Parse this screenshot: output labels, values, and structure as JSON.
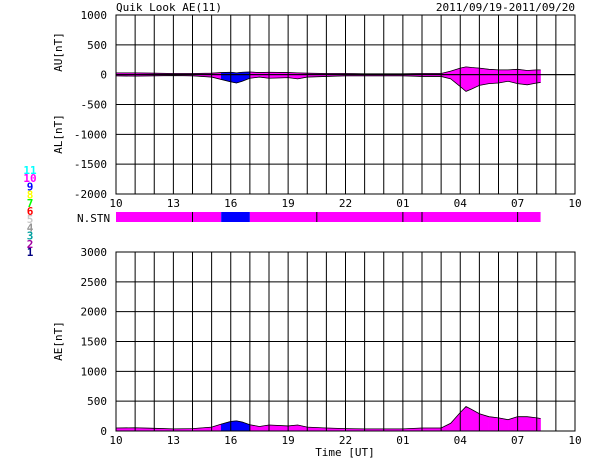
{
  "header": {
    "title": "Quik Look AE(11)",
    "date_range": "2011/09/19-2011/09/20"
  },
  "station_legend": {
    "items": [
      {
        "label": "11",
        "color": "#00ffff"
      },
      {
        "label": "10",
        "color": "#ff00ff"
      },
      {
        "label": "9",
        "color": "#0000ff"
      },
      {
        "label": "8",
        "color": "#ffff00"
      },
      {
        "label": "7",
        "color": "#00ff00"
      },
      {
        "label": "6",
        "color": "#ff0000"
      },
      {
        "label": "5",
        "color": "#c8c8c8"
      },
      {
        "label": "4",
        "color": "#969696"
      },
      {
        "label": "3",
        "color": "#00a0a0"
      },
      {
        "label": "2",
        "color": "#a000a0"
      },
      {
        "label": "1",
        "color": "#000080"
      }
    ]
  },
  "chart_data": [
    {
      "type": "area",
      "panel": "AU/AL",
      "ylabel_top": "AU[nT]",
      "ylabel_bottom": "AL[nT]",
      "ylim": [
        -2000,
        1000
      ],
      "yticks": [
        1000,
        500,
        0,
        -500,
        -1000,
        -1500,
        -2000
      ],
      "xlim": [
        10,
        34
      ],
      "xtick_labels": [
        "10",
        "13",
        "16",
        "19",
        "22",
        "01",
        "04",
        "07",
        "10"
      ],
      "grid": true,
      "series": [
        {
          "x": [
            10,
            11,
            12,
            13,
            14,
            15,
            15.5,
            16,
            16.3,
            16.6,
            17,
            17.5,
            18,
            19,
            19.5,
            20,
            21,
            22,
            23,
            24,
            25,
            26,
            27,
            27.5,
            28,
            28.3,
            28.6,
            29,
            29.5,
            30,
            30.5,
            31,
            31.5,
            32,
            32.2
          ],
          "au": [
            30,
            30,
            25,
            20,
            20,
            25,
            35,
            40,
            30,
            40,
            45,
            35,
            40,
            35,
            30,
            25,
            20,
            20,
            15,
            15,
            15,
            20,
            20,
            60,
            110,
            130,
            120,
            110,
            90,
            80,
            80,
            90,
            70,
            80,
            80
          ],
          "al": [
            -20,
            -25,
            -20,
            -15,
            -20,
            -40,
            -80,
            -120,
            -140,
            -110,
            -60,
            -40,
            -60,
            -50,
            -70,
            -40,
            -30,
            -20,
            -20,
            -20,
            -20,
            -30,
            -30,
            -70,
            -200,
            -280,
            -240,
            -180,
            -150,
            -140,
            -110,
            -150,
            -170,
            -140,
            -130
          ]
        }
      ]
    },
    {
      "type": "area",
      "panel": "AE",
      "ylabel": "AE[nT]",
      "xlabel": "Time [UT]",
      "ylim": [
        0,
        3000
      ],
      "yticks": [
        3000,
        2500,
        2000,
        1500,
        1000,
        500,
        0
      ],
      "xlim": [
        10,
        34
      ],
      "xtick_labels": [
        "10",
        "13",
        "16",
        "19",
        "22",
        "01",
        "04",
        "07",
        "10"
      ],
      "grid": true,
      "series": [
        {
          "x": [
            10,
            11,
            12,
            13,
            14,
            15,
            15.5,
            16,
            16.3,
            16.6,
            17,
            17.5,
            18,
            19,
            19.5,
            20,
            21,
            22,
            23,
            24,
            25,
            26,
            27,
            27.5,
            28,
            28.3,
            28.6,
            29,
            29.5,
            30,
            30.5,
            31,
            31.5,
            32,
            32.2
          ],
          "values": [
            50,
            55,
            45,
            35,
            40,
            65,
            115,
            160,
            170,
            150,
            105,
            75,
            100,
            85,
            100,
            65,
            50,
            40,
            35,
            35,
            35,
            50,
            50,
            130,
            310,
            410,
            360,
            290,
            240,
            220,
            190,
            240,
            240,
            220,
            210
          ]
        }
      ]
    }
  ],
  "station_bar": {
    "label": "N.STN",
    "segments": [
      {
        "from": 10,
        "to": 15.5,
        "station": "10",
        "color": "#ff00ff"
      },
      {
        "from": 15.5,
        "to": 17,
        "station": "9",
        "color": "#0000ff"
      },
      {
        "from": 17,
        "to": 32.2,
        "station": "10",
        "color": "#ff00ff"
      }
    ],
    "markers": [
      14,
      20.5,
      25,
      26,
      31
    ]
  },
  "colors": {
    "fill_primary": "#ff00ff",
    "fill_secondary": "#0000ff",
    "axis": "#000000"
  }
}
